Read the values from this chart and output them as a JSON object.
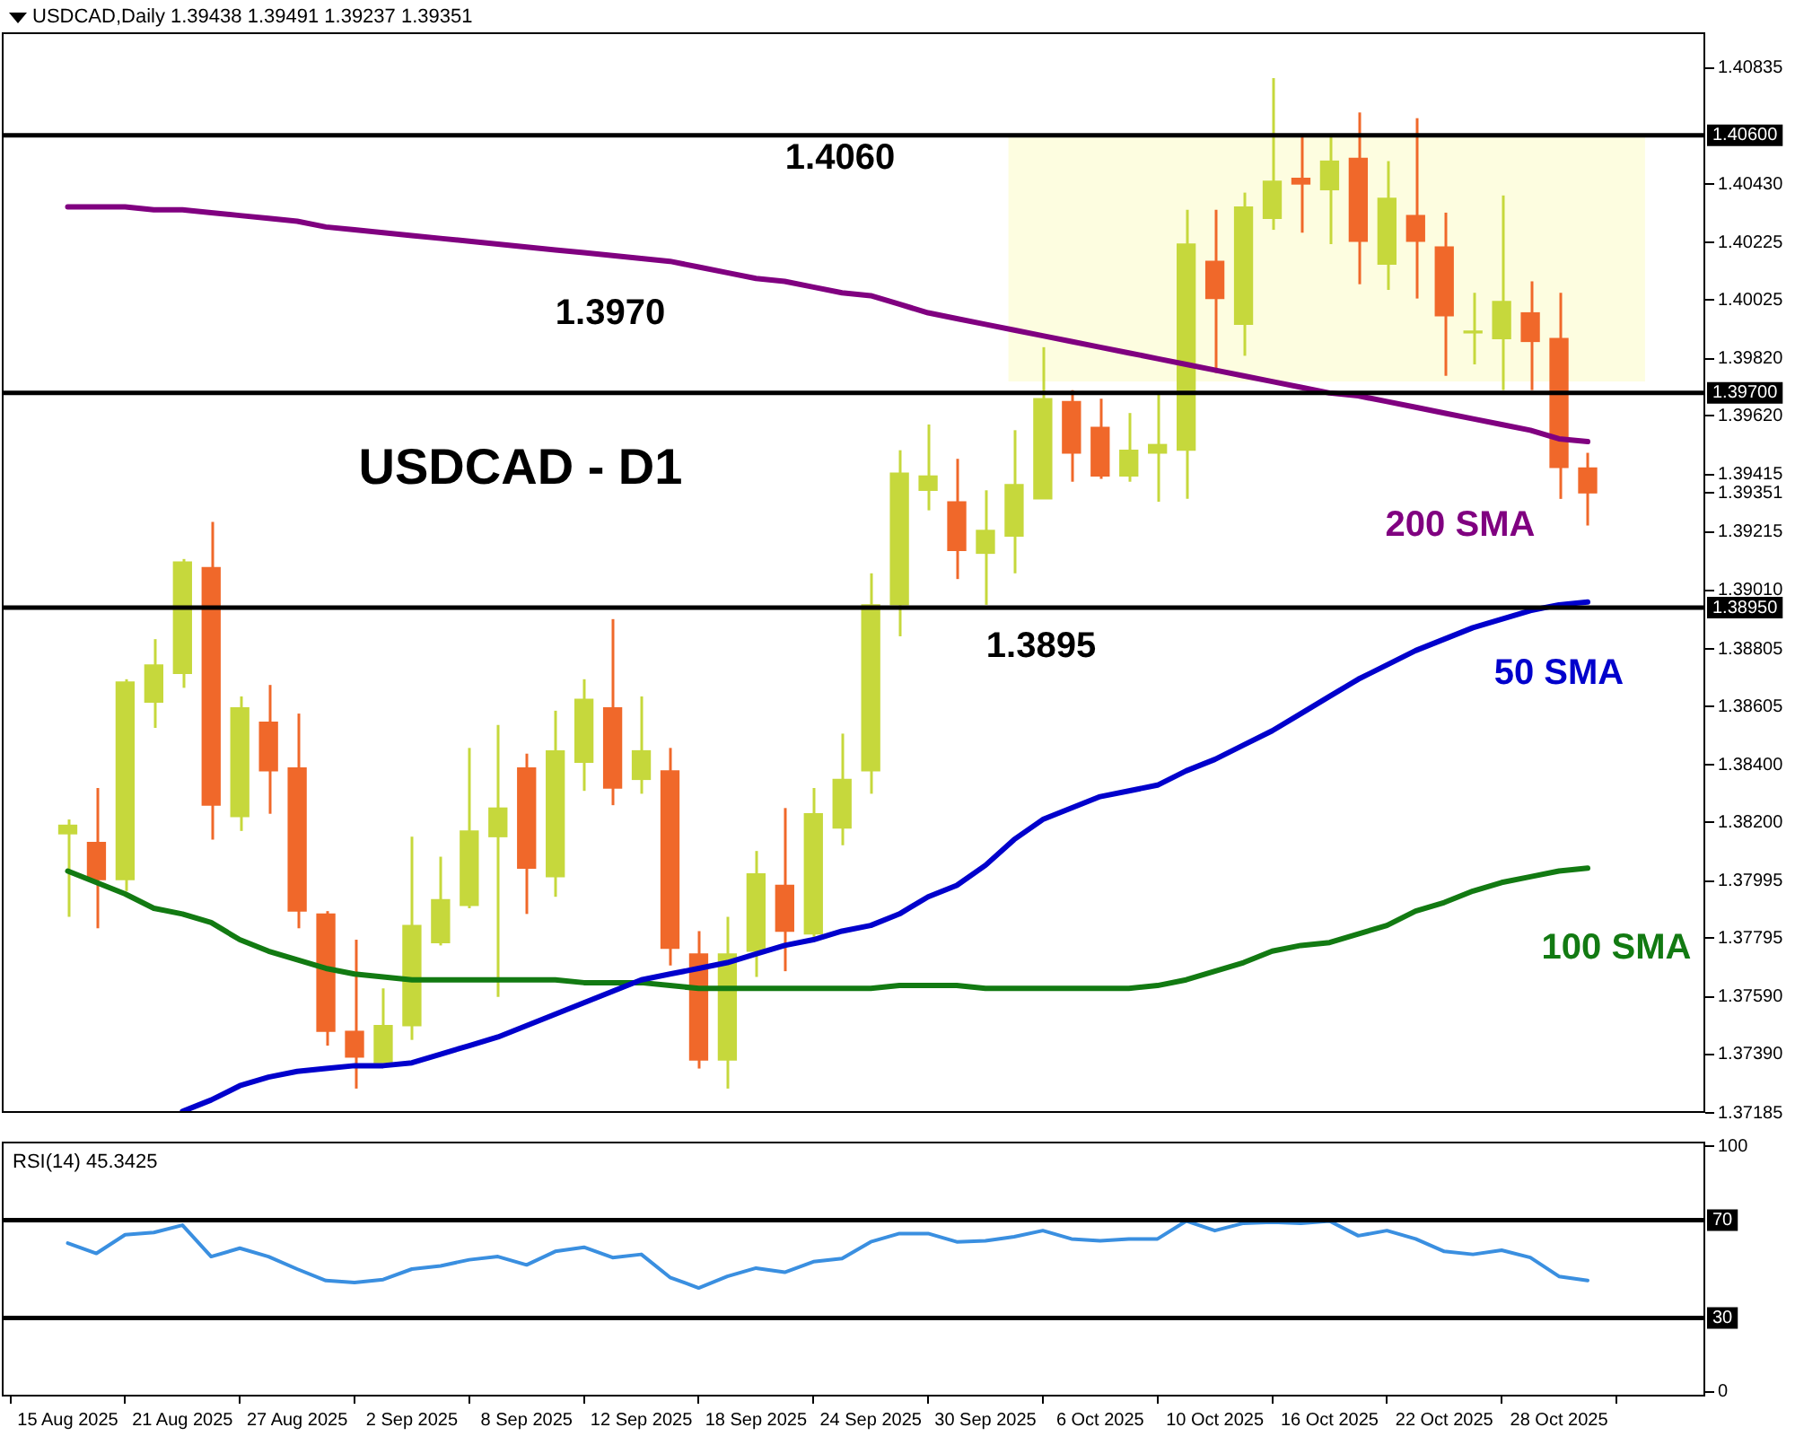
{
  "chart_data": [
    {
      "type": "candlestick",
      "title": "USDCAD,Daily 1.39438 1.39491 1.39237 1.39351",
      "categories": [
        null,
        null,
        null,
        null,
        null,
        null,
        null,
        null,
        null,
        null,
        null,
        null,
        null,
        null,
        null,
        null,
        null,
        null,
        null,
        null,
        null,
        null,
        null,
        null,
        null,
        null,
        null,
        null,
        null,
        null,
        null,
        null,
        null,
        null,
        null,
        null,
        null,
        null,
        null,
        null,
        null,
        null,
        null,
        null,
        null,
        null,
        null,
        null,
        null,
        null,
        null,
        null,
        null,
        null
      ],
      "ohlc": [
        [
          1.3816,
          1.3821,
          1.3787,
          1.3819
        ],
        [
          1.3813,
          1.3832,
          1.3783,
          1.38
        ],
        [
          1.38,
          1.387,
          1.3796,
          1.3869
        ],
        [
          1.3862,
          1.3884,
          1.3853,
          1.3875
        ],
        [
          1.3872,
          1.3912,
          1.3867,
          1.3911
        ],
        [
          1.3909,
          1.3925,
          1.3814,
          1.3826
        ],
        [
          1.3822,
          1.3864,
          1.3817,
          1.386
        ],
        [
          1.3855,
          1.3868,
          1.3823,
          1.3838
        ],
        [
          1.3839,
          1.3858,
          1.3783,
          1.3789
        ],
        [
          1.3788,
          1.3789,
          1.3742,
          1.3747
        ],
        [
          1.3747,
          1.3779,
          1.3727,
          1.3738
        ],
        [
          1.3736,
          1.3762,
          1.3736,
          1.3749
        ],
        [
          1.3749,
          1.3815,
          1.3744,
          1.3784
        ],
        [
          1.3778,
          1.3808,
          1.3777,
          1.3793
        ],
        [
          1.3791,
          1.3846,
          1.379,
          1.3817
        ],
        [
          1.3815,
          1.3854,
          1.3759,
          1.3825
        ],
        [
          1.3839,
          1.3844,
          1.3788,
          1.3804
        ],
        [
          1.3801,
          1.3859,
          1.3794,
          1.3845
        ],
        [
          1.3841,
          1.387,
          1.3831,
          1.3863
        ],
        [
          1.386,
          1.3891,
          1.3826,
          1.3832
        ],
        [
          1.3835,
          1.3864,
          1.383,
          1.3845
        ],
        [
          1.3838,
          1.3846,
          1.377,
          1.3776
        ],
        [
          1.3774,
          1.3782,
          1.3734,
          1.3737
        ],
        [
          1.3737,
          1.3787,
          1.3727,
          1.3774
        ],
        [
          1.3775,
          1.381,
          1.3766,
          1.3802
        ],
        [
          1.3798,
          1.3825,
          1.3768,
          1.3782
        ],
        [
          1.3781,
          1.3832,
          1.378,
          1.3823
        ],
        [
          1.3818,
          1.3851,
          1.3812,
          1.3835
        ],
        [
          1.3838,
          1.3907,
          1.383,
          1.3896
        ],
        [
          1.3896,
          1.395,
          1.3885,
          1.3942
        ],
        [
          1.3936,
          1.3959,
          1.3929,
          1.3941
        ],
        [
          1.3932,
          1.3947,
          1.3905,
          1.3915
        ],
        [
          1.3914,
          1.3936,
          1.3896,
          1.3922
        ],
        [
          1.392,
          1.3957,
          1.3907,
          1.3938
        ],
        [
          1.3933,
          1.3986,
          1.3933,
          1.3968
        ],
        [
          1.3967,
          1.3971,
          1.3939,
          1.3949
        ],
        [
          1.3958,
          1.3968,
          1.394,
          1.3941
        ],
        [
          1.3941,
          1.3963,
          1.3939,
          1.395
        ],
        [
          1.3949,
          1.397,
          1.3932,
          1.3952
        ],
        [
          1.395,
          1.4034,
          1.3933,
          1.4022
        ],
        [
          1.4016,
          1.4034,
          1.3977,
          1.4003
        ],
        [
          1.3994,
          1.404,
          1.3983,
          1.4035
        ],
        [
          1.4031,
          1.408,
          1.4027,
          1.4044
        ],
        [
          1.4045,
          1.406,
          1.4026,
          1.4043
        ],
        [
          1.4041,
          1.406,
          1.4022,
          1.4051
        ],
        [
          1.4052,
          1.4068,
          1.4008,
          1.4023
        ],
        [
          1.4015,
          1.4051,
          1.4006,
          1.4038
        ],
        [
          1.4032,
          1.4066,
          1.4003,
          1.4023
        ],
        [
          1.4021,
          1.4033,
          1.3976,
          1.3997
        ],
        [
          1.3991,
          1.4005,
          1.398,
          1.3991
        ],
        [
          1.3989,
          1.4039,
          1.3971,
          1.4002
        ],
        [
          1.3998,
          1.4009,
          1.3971,
          1.3988
        ],
        [
          1.3989,
          1.4005,
          1.3933,
          1.3944
        ],
        [
          1.39438,
          1.39491,
          1.39237,
          1.39351
        ]
      ],
      "colors": [
        "#c6d83c",
        "#f0682a",
        "#c6d83c",
        "#c6d83c",
        "#c6d83c",
        "#f0682a",
        "#c6d83c",
        "#f0682a",
        "#f0682a",
        "#f0682a",
        "#f0682a",
        "#c6d83c",
        "#c6d83c",
        "#c6d83c",
        "#c6d83c",
        "#c6d83c",
        "#f0682a",
        "#c6d83c",
        "#c6d83c",
        "#f0682a",
        "#c6d83c",
        "#f0682a",
        "#f0682a",
        "#c6d83c",
        "#c6d83c",
        "#f0682a",
        "#c6d83c",
        "#c6d83c",
        "#c6d83c",
        "#c6d83c",
        "#c6d83c",
        "#f0682a",
        "#c6d83c",
        "#c6d83c",
        "#c6d83c",
        "#f0682a",
        "#f0682a",
        "#c6d83c",
        "#c6d83c",
        "#c6d83c",
        "#f0682a",
        "#c6d83c",
        "#c6d83c",
        "#f0682a",
        "#c6d83c",
        "#f0682a",
        "#c6d83c",
        "#f0682a",
        "#f0682a",
        "#c6d83c",
        "#c6d83c",
        "#f0682a",
        "#f0682a",
        "#f0682a"
      ],
      "series": [
        {
          "type": "line",
          "name": "200 SMA",
          "color": "#800080",
          "values": [
            1.4035,
            1.4035,
            1.4035,
            1.4034,
            1.4034,
            1.4033,
            1.4032,
            1.4031,
            1.403,
            1.4028,
            1.4027,
            1.4026,
            1.4025,
            1.4024,
            1.4023,
            1.4022,
            1.4021,
            1.402,
            1.4019,
            1.4018,
            1.4017,
            1.4016,
            1.4014,
            1.4012,
            1.401,
            1.4009,
            1.4007,
            1.4005,
            1.4004,
            1.4001,
            1.3998,
            1.3996,
            1.3994,
            1.3992,
            1.399,
            1.3988,
            1.3986,
            1.3984,
            1.3982,
            1.398,
            1.3978,
            1.3976,
            1.3974,
            1.3972,
            1.397,
            1.3969,
            1.3967,
            1.3965,
            1.3963,
            1.3961,
            1.3959,
            1.3957,
            1.3954,
            1.3953
          ]
        },
        {
          "type": "line",
          "name": "50 SMA",
          "color": "#0000cc",
          "values": [
            null,
            null,
            null,
            null,
            1.3719,
            1.3723,
            1.3728,
            1.3731,
            1.3733,
            1.3734,
            1.3735,
            1.3735,
            1.3736,
            1.3739,
            1.3742,
            1.3745,
            1.3749,
            1.3753,
            1.3757,
            1.3761,
            1.3765,
            1.3767,
            1.3769,
            1.3771,
            1.3774,
            1.3777,
            1.3779,
            1.3782,
            1.3784,
            1.3788,
            1.3794,
            1.3798,
            1.3805,
            1.3814,
            1.3821,
            1.3825,
            1.3829,
            1.3831,
            1.3833,
            1.3838,
            1.3842,
            1.3847,
            1.3852,
            1.3858,
            1.3864,
            1.387,
            1.3875,
            1.388,
            1.3884,
            1.3888,
            1.3891,
            1.3894,
            1.3896,
            1.3897
          ]
        },
        {
          "type": "line",
          "name": "100 SMA",
          "color": "#127a12",
          "values": [
            1.3803,
            1.3799,
            1.3795,
            1.379,
            1.3788,
            1.3785,
            1.3779,
            1.3775,
            1.3772,
            1.3769,
            1.3767,
            1.3766,
            1.3765,
            1.3765,
            1.3765,
            1.3765,
            1.3765,
            1.3765,
            1.3764,
            1.3764,
            1.3764,
            1.3763,
            1.3762,
            1.3762,
            1.3762,
            1.3762,
            1.3762,
            1.3762,
            1.3762,
            1.3763,
            1.3763,
            1.3763,
            1.3762,
            1.3762,
            1.3762,
            1.3762,
            1.3762,
            1.3762,
            1.3763,
            1.3765,
            1.3768,
            1.3771,
            1.3775,
            1.3777,
            1.3778,
            1.3781,
            1.3784,
            1.3789,
            1.3792,
            1.3796,
            1.3799,
            1.3801,
            1.3803,
            1.3804
          ]
        }
      ],
      "ylim": [
        1.37185,
        1.4096
      ],
      "yticks": [
        1.40835,
        {
          "value": 1.4043,
          "label": "1.40430"
        },
        1.40225,
        1.40025,
        {
          "value": 1.3982,
          "label": "1.39820"
        },
        {
          "value": 1.3962,
          "label": "1.39620"
        },
        1.39415,
        1.39351,
        1.39215,
        {
          "value": 1.3901,
          "label": "1.39010"
        },
        1.38805,
        1.38605,
        {
          "value": 1.384,
          "label": "1.38400"
        },
        {
          "value": 1.382,
          "label": "1.38200"
        },
        1.37995,
        1.37795,
        {
          "value": 1.3759,
          "label": "1.37590"
        },
        {
          "value": 1.3739,
          "label": "1.37390"
        },
        1.37185
      ],
      "ref_lines": [
        {
          "axis": "y",
          "value": 1.406,
          "label": "1.40600",
          "color": "#000000"
        },
        {
          "axis": "y",
          "value": 1.397,
          "label": "1.39700",
          "color": "#000000"
        },
        {
          "axis": "y",
          "value": 1.3895,
          "label": "1.38950",
          "color": "#000000"
        }
      ],
      "bands": [
        {
          "axis": "y",
          "from": 1.3974,
          "to": 1.406,
          "color": "#fdfde0"
        }
      ],
      "annotations": [
        "USDCAD - D1",
        {
          "text": "1.4060",
          "y": 1.406
        },
        {
          "text": "1.3970",
          "y": 1.397
        },
        {
          "text": "1.3895",
          "y": 1.3895
        }
      ],
      "tick_labels": "y",
      "legend": false,
      "grid": false,
      "marker": "none"
    },
    {
      "type": "line",
      "title": "RSI(14) 45.3425",
      "categories": [
        "15 Aug 2025",
        null,
        null,
        null,
        "21 Aug 2025",
        null,
        null,
        null,
        "27 Aug 2025",
        null,
        null,
        null,
        "2 Sep 2025",
        null,
        null,
        null,
        "8 Sep 2025",
        null,
        null,
        null,
        "12 Sep 2025",
        null,
        null,
        null,
        "18 Sep 2025",
        null,
        null,
        null,
        "24 Sep 2025",
        null,
        null,
        null,
        "30 Sep 2025",
        null,
        null,
        null,
        "6 Oct 2025",
        null,
        null,
        null,
        "10 Oct 2025",
        null,
        null,
        null,
        "16 Oct 2025",
        null,
        null,
        null,
        "22 Oct 2025",
        null,
        null,
        null,
        "28 Oct 2025",
        null
      ],
      "series": [
        {
          "color": "#3a8fe0",
          "values": [
            60.6,
            56.4,
            64,
            64.9,
            67.9,
            55.1,
            58.5,
            55.1,
            50,
            45.3,
            44.5,
            45.7,
            50,
            51.3,
            53.8,
            55.1,
            51.7,
            57.2,
            58.9,
            54.7,
            56,
            46.6,
            42.3,
            47,
            50.4,
            48.7,
            53,
            54.3,
            61.1,
            64.5,
            64.5,
            61.1,
            61.5,
            63.2,
            65.7,
            62.3,
            61.5,
            62.3,
            62.3,
            69.6,
            65.7,
            68.7,
            69.1,
            68.7,
            69.6,
            63.6,
            65.7,
            62.3,
            57.2,
            56,
            57.7,
            54.7,
            47,
            45.3
          ]
        }
      ],
      "ylim": [
        -2,
        102
      ],
      "yticks": [
        0,
        100
      ],
      "ref_lines": [
        {
          "axis": "y",
          "value": 70,
          "label": "70",
          "color": "#000000"
        },
        {
          "axis": "y",
          "value": 30,
          "label": "30",
          "color": "#000000"
        }
      ],
      "legend": false,
      "grid": false,
      "marker": "none"
    }
  ]
}
